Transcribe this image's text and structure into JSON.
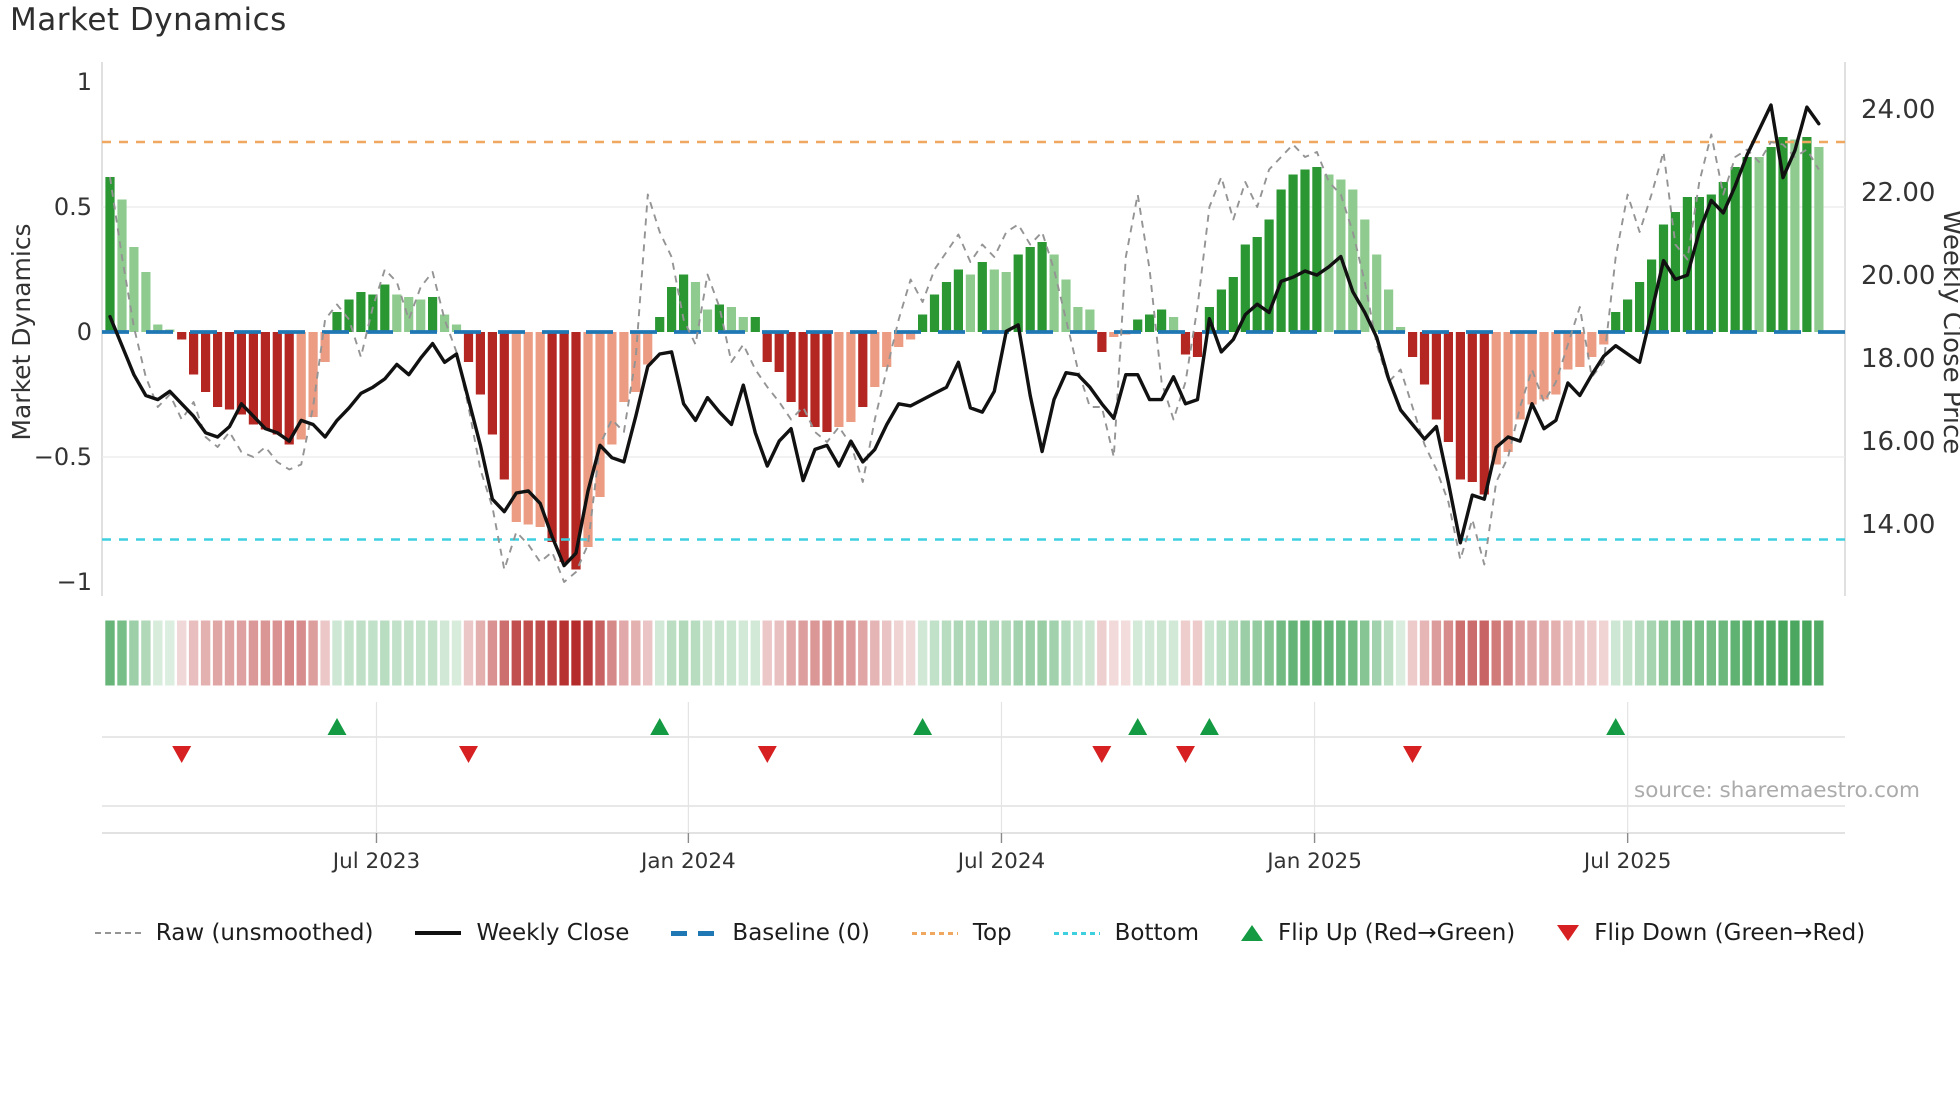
{
  "title": "Market Dynamics",
  "source_text": "source: sharemaestro.com",
  "axes": {
    "left": {
      "title": "Market Dynamics",
      "ticks": [
        {
          "label": "1",
          "v": 1
        },
        {
          "label": "0.5",
          "v": 0.5
        },
        {
          "label": "0",
          "v": 0
        },
        {
          "label": "−0.5",
          "v": -0.5
        },
        {
          "label": "−1",
          "v": -1
        }
      ],
      "ylim": [
        -1,
        1
      ]
    },
    "right": {
      "title": "Weekly Close Price",
      "ticks": [
        {
          "label": "24.00",
          "p": 24
        },
        {
          "label": "22.00",
          "p": 22
        },
        {
          "label": "20.00",
          "p": 20
        },
        {
          "label": "18.00",
          "p": 18
        },
        {
          "label": "16.00",
          "p": 16
        },
        {
          "label": "14.00",
          "p": 14
        }
      ]
    },
    "x": {
      "ticks": [
        {
          "label": "Jul 2023",
          "week": 22.3
        },
        {
          "label": "Jan 2024",
          "week": 48.4
        },
        {
          "label": "Jul 2024",
          "week": 74.6
        },
        {
          "label": "Jan 2025",
          "week": 100.8
        },
        {
          "label": "Jul 2025",
          "week": 127.0
        }
      ]
    }
  },
  "legend": {
    "items": [
      {
        "label": "Raw (unsmoothed)",
        "swatch": "raw"
      },
      {
        "label": "Weekly Close",
        "swatch": "weekly"
      },
      {
        "label": "Baseline (0)",
        "swatch": "baseline"
      },
      {
        "label": "Top",
        "swatch": "top"
      },
      {
        "label": "Bottom",
        "swatch": "bottom"
      },
      {
        "label": "Flip Up (Red→Green)",
        "swatch": "up"
      },
      {
        "label": "Flip Down (Green→Red)",
        "swatch": "down"
      }
    ]
  },
  "colors": {
    "bar_green_strong": "#2a9732",
    "bar_green_soft": "#8fcb8f",
    "bar_red_strong": "#b42622",
    "bar_red_soft": "#eb9c83",
    "baseline": "#1f77b4",
    "top_line": "#f0a861",
    "bottom_line": "#3fd0e0",
    "raw_line": "#949494",
    "price_line": "#111111",
    "flip_up": "#149a43",
    "flip_down": "#d62021",
    "heat_green": "#1f9238",
    "heat_red": "#b22222",
    "grid": "#ebebeb",
    "spine": "#cccccc",
    "band_line": "#d9d9d9",
    "tick_text": "#333333",
    "source_text_color": "#ababab"
  },
  "chart_data": {
    "type": "composite",
    "x_unit": "week_index",
    "n_weeks": 144,
    "x_tick_labels": [
      "Jul 2023",
      "Jan 2024",
      "Jul 2024",
      "Jan 2025",
      "Jul 2025"
    ],
    "ylim_left": [
      -1,
      1
    ],
    "right_axis_ticks": [
      24,
      22,
      20,
      18,
      16,
      14
    ],
    "reference_lines": {
      "baseline": 0,
      "top": 0.76,
      "bottom": -0.83
    },
    "flip_up_weeks": [
      19,
      46,
      68,
      86,
      92,
      126
    ],
    "flip_down_weeks": [
      6,
      30,
      55,
      83,
      90,
      109
    ],
    "series_bars": {
      "name": "Market Dynamics (weekly bars, strong/soft shading)",
      "type": "bar",
      "values": [
        0.62,
        0.53,
        0.34,
        0.24,
        0.03,
        0.01,
        -0.03,
        -0.17,
        -0.24,
        -0.3,
        -0.31,
        -0.33,
        -0.37,
        -0.39,
        -0.41,
        -0.45,
        -0.43,
        -0.34,
        -0.12,
        0.08,
        0.13,
        0.16,
        0.15,
        0.19,
        0.15,
        0.14,
        0.13,
        0.14,
        0.07,
        0.03,
        -0.12,
        -0.25,
        -0.41,
        -0.59,
        -0.76,
        -0.77,
        -0.78,
        -0.84,
        -0.92,
        -0.95,
        -0.86,
        -0.66,
        -0.45,
        -0.28,
        -0.24,
        -0.13,
        0.06,
        0.18,
        0.23,
        0.2,
        0.09,
        0.11,
        0.1,
        0.06,
        0.06,
        -0.12,
        -0.16,
        -0.28,
        -0.34,
        -0.38,
        -0.4,
        -0.38,
        -0.36,
        -0.3,
        -0.22,
        -0.14,
        -0.06,
        -0.03,
        0.07,
        0.15,
        0.2,
        0.25,
        0.23,
        0.28,
        0.25,
        0.24,
        0.31,
        0.34,
        0.36,
        0.31,
        0.21,
        0.1,
        0.09,
        -0.08,
        -0.02,
        -0.01,
        0.05,
        0.07,
        0.09,
        0.06,
        -0.09,
        -0.1,
        0.1,
        0.17,
        0.22,
        0.35,
        0.38,
        0.45,
        0.57,
        0.63,
        0.65,
        0.66,
        0.63,
        0.61,
        0.57,
        0.45,
        0.31,
        0.17,
        0.02,
        -0.1,
        -0.21,
        -0.35,
        -0.44,
        -0.59,
        -0.6,
        -0.65,
        -0.53,
        -0.48,
        -0.35,
        -0.29,
        -0.27,
        -0.25,
        -0.15,
        -0.14,
        -0.1,
        -0.05,
        0.08,
        0.13,
        0.2,
        0.29,
        0.43,
        0.48,
        0.54,
        0.54,
        0.55,
        0.6,
        0.66,
        0.7,
        0.7,
        0.74,
        0.78,
        0.77,
        0.78,
        0.74
      ],
      "emphasis": [
        1,
        0,
        0,
        0,
        0,
        0,
        1,
        1,
        1,
        1,
        1,
        1,
        1,
        1,
        1,
        1,
        0,
        0,
        0,
        1,
        1,
        1,
        1,
        1,
        0,
        0,
        0,
        1,
        0,
        0,
        1,
        1,
        1,
        1,
        0,
        0,
        0,
        1,
        1,
        1,
        0,
        0,
        0,
        0,
        0,
        0,
        1,
        1,
        1,
        0,
        0,
        1,
        0,
        0,
        1,
        1,
        1,
        1,
        1,
        1,
        1,
        0,
        0,
        1,
        0,
        0,
        0,
        0,
        1,
        1,
        1,
        1,
        0,
        1,
        0,
        0,
        1,
        1,
        1,
        0,
        0,
        0,
        0,
        1,
        0,
        0,
        1,
        1,
        1,
        0,
        1,
        1,
        1,
        1,
        1,
        1,
        1,
        1,
        1,
        1,
        1,
        1,
        0,
        0,
        0,
        0,
        0,
        0,
        0,
        1,
        1,
        1,
        1,
        1,
        1,
        1,
        0,
        0,
        0,
        0,
        0,
        0,
        0,
        0,
        0,
        0,
        1,
        1,
        1,
        1,
        1,
        1,
        1,
        1,
        1,
        1,
        1,
        1,
        0,
        1,
        1,
        0,
        1,
        0
      ]
    },
    "series_raw": {
      "name": "Raw (unsmoothed)",
      "type": "line",
      "values": [
        0.62,
        0.3,
        0.02,
        -0.18,
        -0.3,
        -0.25,
        -0.35,
        -0.28,
        -0.42,
        -0.46,
        -0.4,
        -0.48,
        -0.5,
        -0.46,
        -0.52,
        -0.55,
        -0.53,
        -0.3,
        0.05,
        0.11,
        0.05,
        -0.1,
        0.1,
        0.25,
        0.2,
        0.05,
        0.18,
        0.24,
        0.05,
        -0.08,
        -0.3,
        -0.55,
        -0.7,
        -0.95,
        -0.8,
        -0.85,
        -0.92,
        -0.88,
        -1.0,
        -0.96,
        -0.85,
        -0.45,
        -0.35,
        -0.4,
        -0.1,
        0.55,
        0.4,
        0.3,
        0.05,
        -0.05,
        0.23,
        0.1,
        -0.12,
        -0.05,
        -0.15,
        -0.22,
        -0.28,
        -0.35,
        -0.3,
        -0.4,
        -0.44,
        -0.38,
        -0.45,
        -0.6,
        -0.35,
        -0.15,
        0.05,
        0.21,
        0.12,
        0.25,
        0.32,
        0.39,
        0.28,
        0.35,
        0.3,
        0.4,
        0.43,
        0.35,
        0.4,
        0.25,
        0.05,
        -0.15,
        -0.3,
        -0.3,
        -0.5,
        0.3,
        0.55,
        0.25,
        -0.2,
        -0.35,
        -0.2,
        0.1,
        0.5,
        0.62,
        0.45,
        0.6,
        0.5,
        0.65,
        0.7,
        0.75,
        0.7,
        0.72,
        0.6,
        0.55,
        0.4,
        0.2,
        -0.05,
        -0.2,
        -0.15,
        -0.3,
        -0.45,
        -0.55,
        -0.68,
        -0.91,
        -0.75,
        -0.93,
        -0.6,
        -0.5,
        -0.3,
        -0.15,
        -0.28,
        -0.2,
        -0.05,
        0.1,
        -0.18,
        -0.12,
        0.3,
        0.55,
        0.4,
        0.55,
        0.72,
        0.35,
        0.29,
        0.6,
        0.79,
        0.55,
        0.7,
        0.73,
        0.68,
        0.76,
        0.75,
        0.7,
        0.73,
        0.65
      ]
    },
    "series_price": {
      "name": "Weekly Close",
      "type": "line",
      "axis": "right",
      "values": [
        19.0,
        18.3,
        17.6,
        17.1,
        17.0,
        17.2,
        16.9,
        16.6,
        16.2,
        16.1,
        16.35,
        16.9,
        16.6,
        16.3,
        16.2,
        16.0,
        16.5,
        16.4,
        16.1,
        16.5,
        16.8,
        17.15,
        17.3,
        17.5,
        17.85,
        17.6,
        18.0,
        18.35,
        17.9,
        18.1,
        17.0,
        15.9,
        14.6,
        14.3,
        14.75,
        14.8,
        14.5,
        13.7,
        13.0,
        13.3,
        14.8,
        15.9,
        15.6,
        15.5,
        16.6,
        17.8,
        18.1,
        18.15,
        16.9,
        16.5,
        17.05,
        16.7,
        16.4,
        17.35,
        16.2,
        15.4,
        16.0,
        16.3,
        15.05,
        15.8,
        15.9,
        15.4,
        16.0,
        15.5,
        15.8,
        16.4,
        16.9,
        16.85,
        17.0,
        17.15,
        17.3,
        17.9,
        16.8,
        16.7,
        17.2,
        18.65,
        18.8,
        17.1,
        15.75,
        17.0,
        17.65,
        17.6,
        17.3,
        16.9,
        16.55,
        17.6,
        17.6,
        17.0,
        17.0,
        17.55,
        16.9,
        17.0,
        18.95,
        18.15,
        18.45,
        19.05,
        19.3,
        19.1,
        19.85,
        19.95,
        20.1,
        20.0,
        20.2,
        20.45,
        19.6,
        19.1,
        18.5,
        17.5,
        16.75,
        16.4,
        16.05,
        16.35,
        15.0,
        13.55,
        14.7,
        14.6,
        15.85,
        16.1,
        16.0,
        16.9,
        16.3,
        16.5,
        17.4,
        17.1,
        17.6,
        18.05,
        18.3,
        18.1,
        17.9,
        19.1,
        20.35,
        19.9,
        20.0,
        21.05,
        21.8,
        21.5,
        22.15,
        22.9,
        23.5,
        24.1,
        22.35,
        23.0,
        24.05,
        23.65
      ]
    },
    "heatmap": {
      "name": "Market dynamics heat strip",
      "type": "heatmap",
      "note": "one cell per week, color intensity proportional to |bar value|, green positive / red negative"
    }
  }
}
